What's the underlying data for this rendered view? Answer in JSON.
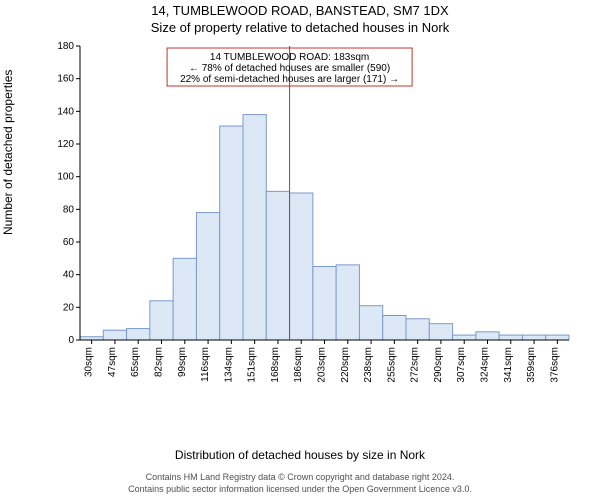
{
  "title_line1": "14, TUMBLEWOOD ROAD, BANSTEAD, SM7 1DX",
  "title_line2": "Size of property relative to detached houses in Nork",
  "y_axis_label": "Number of detached properties",
  "x_axis_label": "Distribution of detached houses by size in Nork",
  "footer_line1": "Contains HM Land Registry data © Crown copyright and database right 2024.",
  "footer_line2": "Contains public sector information licensed under the Open Government Licence v3.0.",
  "annotation": {
    "line1": "14 TUMBLEWOOD ROAD: 183sqm",
    "line2": "← 78% of detached houses are smaller (590)",
    "line3": "22% of semi-detached houses are larger (171) →",
    "box_color": "#c43028",
    "text_color": "#000000"
  },
  "chart": {
    "type": "histogram",
    "ylim": [
      0,
      180
    ],
    "ytick_step": 20,
    "categories": [
      "30sqm",
      "47sqm",
      "65sqm",
      "82sqm",
      "99sqm",
      "116sqm",
      "134sqm",
      "151sqm",
      "168sqm",
      "186sqm",
      "203sqm",
      "220sqm",
      "238sqm",
      "255sqm",
      "272sqm",
      "290sqm",
      "307sqm",
      "324sqm",
      "341sqm",
      "359sqm",
      "376sqm"
    ],
    "values": [
      2,
      6,
      7,
      24,
      50,
      78,
      131,
      138,
      91,
      90,
      45,
      46,
      21,
      15,
      13,
      10,
      3,
      5,
      3,
      3,
      3
    ],
    "reference_line_index": 9,
    "bar_fill": "#dde8f6",
    "bar_stroke": "#7b99c9",
    "reference_line_color": "#c43028",
    "axis_color": "#000000",
    "background_color": "#ffffff",
    "tick_fontsize": 10,
    "label_fontsize": 12,
    "title_fontsize": 13
  }
}
